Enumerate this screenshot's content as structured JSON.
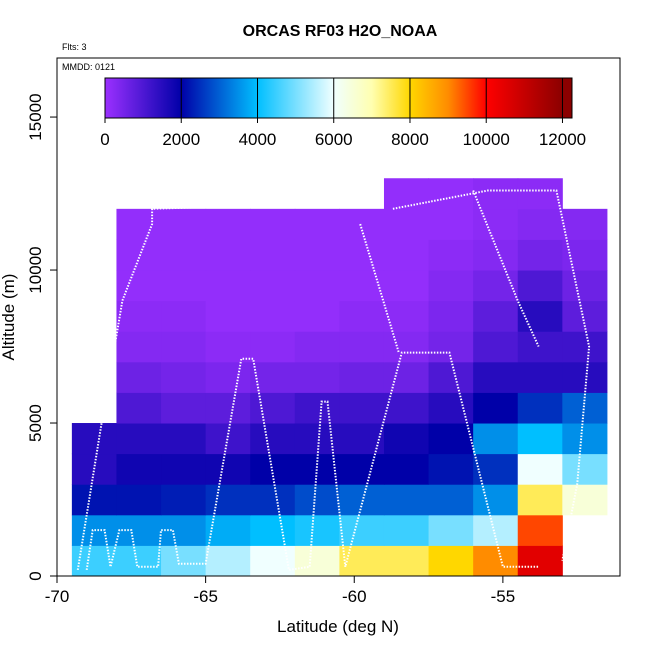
{
  "chart_data": {
    "type": "heatmap",
    "title": "ORCAS RF03 H2O_NOAA",
    "flights_label": "Flts: 3",
    "date_label": "MMDD: 0121",
    "x_label": "Latitude (deg N)",
    "y_label": "Altitude (m)",
    "xlim": [
      -70,
      -51.06
    ],
    "xticks": [
      -70,
      -65,
      -60,
      -55
    ],
    "ylim": [
      0,
      16930
    ],
    "yticks": [
      0,
      5000,
      10000,
      15000
    ],
    "lat_edges": [
      -69.5,
      -68,
      -66.5,
      -65,
      -63.5,
      -62,
      -60.5,
      -59,
      -57.5,
      -56,
      -54.5,
      -53,
      -51.5
    ],
    "alt_edges": [
      0,
      1000,
      2000,
      3000,
      4000,
      5000,
      6000,
      7000,
      8000,
      9000,
      10000,
      11000,
      12000,
      13000
    ],
    "z": [
      [
        4500,
        4500,
        5000,
        5500,
        6000,
        6500,
        7500,
        7500,
        8000,
        9000,
        10500,
        null
      ],
      [
        3500,
        3500,
        3500,
        3800,
        4000,
        4200,
        4500,
        4500,
        5000,
        5500,
        9500,
        null
      ],
      [
        2200,
        2200,
        2300,
        2500,
        2500,
        2800,
        3000,
        3000,
        3000,
        3500,
        7500,
        6500
      ],
      [
        1500,
        1800,
        1800,
        1800,
        2000,
        2000,
        2000,
        2000,
        2200,
        2500,
        6000,
        5000
      ],
      [
        1500,
        1500,
        1500,
        1200,
        1500,
        1500,
        1500,
        1800,
        2000,
        3500,
        4000,
        3500
      ],
      [
        null,
        1000,
        800,
        800,
        1000,
        1200,
        1200,
        1200,
        1500,
        2000,
        2500,
        3000
      ],
      [
        null,
        600,
        500,
        400,
        500,
        500,
        600,
        600,
        1000,
        1500,
        1500,
        1500
      ],
      [
        null,
        300,
        300,
        200,
        200,
        300,
        300,
        300,
        500,
        1000,
        1200,
        1200
      ],
      [
        null,
        200,
        200,
        100,
        100,
        100,
        200,
        200,
        400,
        800,
        1500,
        800
      ],
      [
        null,
        100,
        100,
        100,
        100,
        100,
        100,
        100,
        300,
        500,
        1000,
        600
      ],
      [
        null,
        100,
        100,
        100,
        100,
        100,
        100,
        100,
        200,
        300,
        500,
        400
      ],
      [
        null,
        100,
        100,
        100,
        100,
        100,
        100,
        100,
        100,
        200,
        300,
        300
      ],
      [
        null,
        null,
        null,
        null,
        null,
        null,
        null,
        100,
        100,
        200,
        200,
        null
      ]
    ],
    "colorscale": [
      {
        "value": 0,
        "color": "#9b30ff"
      },
      {
        "value": 2000,
        "color": "#0000a8"
      },
      {
        "value": 4000,
        "color": "#00bfff"
      },
      {
        "value": 6000,
        "color": "#f0ffff"
      },
      {
        "value": 7000,
        "color": "#ffffb0"
      },
      {
        "value": 8000,
        "color": "#ffd700"
      },
      {
        "value": 9000,
        "color": "#ff8c00"
      },
      {
        "value": 10000,
        "color": "#ff0000"
      },
      {
        "value": 12000,
        "color": "#8b0000"
      }
    ],
    "colorbar_lim": [
      0,
      12250
    ],
    "colorbar_ticks": [
      0,
      2000,
      4000,
      6000,
      8000,
      10000,
      12000
    ],
    "track": {
      "color": "#ffffff",
      "x": [
        -69.3,
        -68.5,
        -67.8,
        -66.8,
        -66.8,
        -60.5,
        null,
        -69,
        -68.8,
        -68.4,
        -68.2,
        -67.9,
        -67.5,
        -67.3,
        -66.6,
        -66.5,
        -66.1,
        -65.9,
        -65,
        -63.8,
        -63.4,
        -62.2,
        -61.5,
        -61.1,
        -60.9,
        -60.3,
        -58.4,
        -56.8,
        -55,
        -53.8,
        null,
        -58.7,
        -55.5,
        -53.2,
        -52.1,
        -52.5,
        -53,
        null,
        -59.8,
        -58.5,
        null,
        -56,
        -54.5,
        -53.8
      ],
      "y": [
        200,
        5000,
        9000,
        11500,
        12000,
        12200,
        null,
        200,
        1500,
        1500,
        300,
        1500,
        1500,
        300,
        300,
        1500,
        1500,
        400,
        400,
        7100,
        7100,
        200,
        300,
        5700,
        5700,
        300,
        7300,
        7300,
        300,
        300,
        null,
        12000,
        12600,
        12600,
        7500,
        3000,
        500,
        null,
        11500,
        7300,
        null,
        12600,
        9000,
        7500
      ]
    }
  }
}
